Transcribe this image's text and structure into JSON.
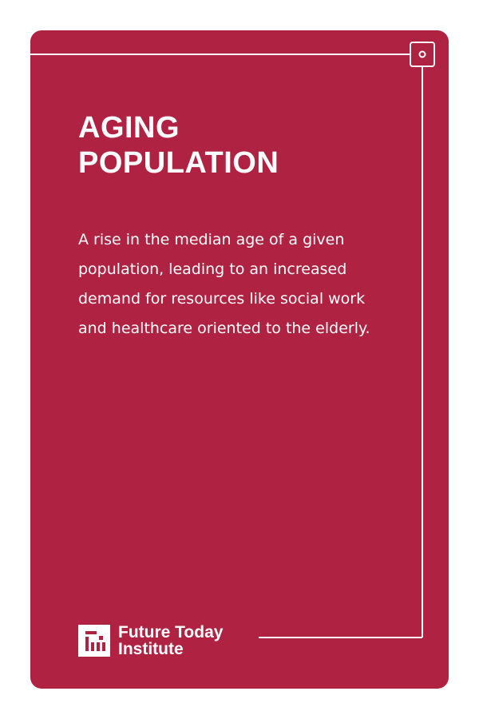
{
  "card": {
    "title_line1": "AGING",
    "title_line2": "POPULATION",
    "description": "A rise in the median age of a given population, leading to an increased demand for resources like social work and healthcare oriented to the elderly."
  },
  "brand": {
    "name_line1": "Future Today",
    "name_line2": "Institute",
    "logo_icon": "fti-logo-icon"
  },
  "colors": {
    "card_background": "#b02242",
    "text": "#ffffff",
    "page_background": "#ffffff"
  }
}
